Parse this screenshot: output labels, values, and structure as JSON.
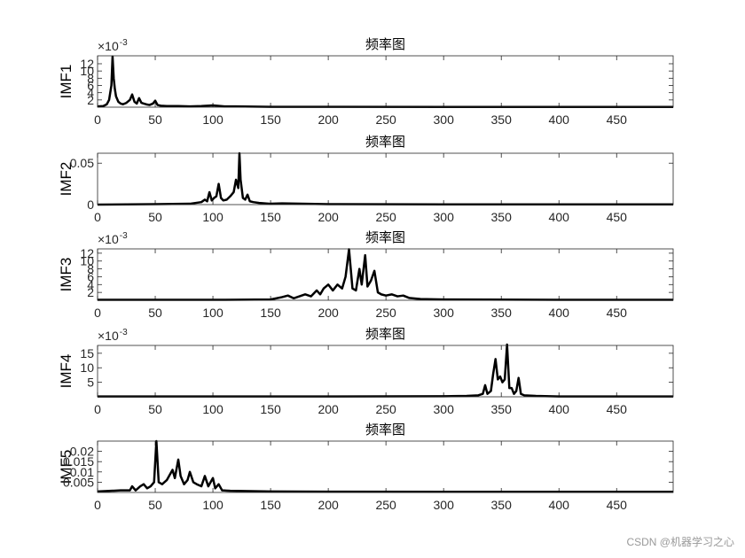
{
  "chart_data": [
    {
      "type": "line",
      "title": "频率图",
      "y_label": "IMF1",
      "y_exponent_base": "×10",
      "y_exponent": "-3",
      "x": [
        0,
        5,
        8,
        10,
        12,
        13,
        14,
        15,
        16,
        18,
        20,
        22,
        25,
        28,
        30,
        32,
        34,
        36,
        38,
        40,
        42,
        45,
        48,
        50,
        52,
        55,
        60,
        70,
        80,
        90,
        100,
        110,
        120,
        150,
        200,
        300,
        400,
        499
      ],
      "values": [
        0.0002,
        0.0003,
        0.0008,
        0.002,
        0.006,
        0.014,
        0.008,
        0.005,
        0.003,
        0.0015,
        0.001,
        0.0008,
        0.0012,
        0.002,
        0.0035,
        0.0015,
        0.001,
        0.0025,
        0.0012,
        0.001,
        0.0008,
        0.0006,
        0.001,
        0.0018,
        0.0006,
        0.0004,
        0.0003,
        0.0003,
        0.0002,
        0.0003,
        0.0005,
        0.0002,
        0.0002,
        0.0001,
        0.0001,
        5e-05,
        5e-05,
        5e-05
      ],
      "color": "#000000",
      "xlim": [
        0,
        499
      ],
      "xticks": [
        0,
        50,
        100,
        150,
        200,
        250,
        300,
        350,
        400,
        450
      ],
      "ylim": [
        0,
        0.0142
      ],
      "yticks": [
        {
          "value": 0.002,
          "label": "2"
        },
        {
          "value": 0.004,
          "label": "4"
        },
        {
          "value": 0.006,
          "label": "6"
        },
        {
          "value": 0.008,
          "label": "8"
        },
        {
          "value": 0.01,
          "label": "10"
        },
        {
          "value": 0.012,
          "label": "12"
        }
      ]
    },
    {
      "type": "line",
      "title": "频率图",
      "y_label": "IMF2",
      "x": [
        0,
        50,
        80,
        90,
        93,
        95,
        97,
        99,
        101,
        103,
        105,
        107,
        109,
        112,
        115,
        118,
        120,
        122,
        123,
        124,
        126,
        128,
        130,
        132,
        135,
        140,
        150,
        160,
        200,
        300,
        400,
        499
      ],
      "values": [
        0,
        0.0005,
        0.001,
        0.003,
        0.006,
        0.004,
        0.015,
        0.005,
        0.008,
        0.01,
        0.025,
        0.008,
        0.005,
        0.006,
        0.01,
        0.015,
        0.03,
        0.02,
        0.062,
        0.03,
        0.008,
        0.006,
        0.012,
        0.004,
        0.003,
        0.002,
        0.001,
        0.0015,
        0.0005,
        0.0003,
        0.0002,
        0.0002
      ],
      "color": "#000000",
      "xlim": [
        0,
        499
      ],
      "xticks": [
        0,
        50,
        100,
        150,
        200,
        250,
        300,
        350,
        400,
        450
      ],
      "ylim": [
        0,
        0.062
      ],
      "yticks": [
        0,
        0.05
      ]
    },
    {
      "type": "line",
      "title": "频率图",
      "y_label": "IMF3",
      "y_exponent_base": "×10",
      "y_exponent": "-3",
      "x": [
        0,
        100,
        150,
        160,
        165,
        170,
        175,
        180,
        185,
        190,
        193,
        196,
        200,
        204,
        208,
        212,
        215,
        218,
        221,
        224,
        227,
        229,
        232,
        234,
        237,
        240,
        243,
        246,
        250,
        255,
        260,
        265,
        270,
        280,
        300,
        400,
        499
      ],
      "values": [
        0.0001,
        0.0001,
        0.0002,
        0.0008,
        0.0012,
        0.0005,
        0.001,
        0.0015,
        0.001,
        0.0025,
        0.0015,
        0.003,
        0.004,
        0.0025,
        0.004,
        0.003,
        0.006,
        0.013,
        0.003,
        0.0025,
        0.008,
        0.004,
        0.0115,
        0.0035,
        0.005,
        0.0075,
        0.002,
        0.0015,
        0.0012,
        0.0015,
        0.001,
        0.0012,
        0.0006,
        0.0003,
        0.0002,
        0.0001,
        0.0001
      ],
      "color": "#000000",
      "xlim": [
        0,
        499
      ],
      "xticks": [
        0,
        50,
        100,
        150,
        200,
        250,
        300,
        350,
        400,
        450
      ],
      "ylim": [
        0,
        0.0131
      ],
      "yticks": [
        {
          "value": 0.002,
          "label": "2"
        },
        {
          "value": 0.004,
          "label": "4"
        },
        {
          "value": 0.006,
          "label": "6"
        },
        {
          "value": 0.008,
          "label": "8"
        },
        {
          "value": 0.01,
          "label": "10"
        },
        {
          "value": 0.012,
          "label": "12"
        }
      ]
    },
    {
      "type": "line",
      "title": "频率图",
      "y_label": "IMF4",
      "y_exponent_base": "×10",
      "y_exponent": "-3",
      "x": [
        0,
        100,
        200,
        300,
        320,
        330,
        334,
        336,
        338,
        341,
        343,
        345,
        347,
        349,
        351,
        353,
        355,
        357,
        359,
        361,
        363,
        365,
        367,
        370,
        380,
        400,
        499
      ],
      "values": [
        0.0001,
        0.0001,
        0.0001,
        0.0002,
        0.0003,
        0.0005,
        0.001,
        0.004,
        0.001,
        0.002,
        0.008,
        0.013,
        0.006,
        0.007,
        0.005,
        0.006,
        0.018,
        0.003,
        0.003,
        0.001,
        0.002,
        0.0065,
        0.001,
        0.0005,
        0.0003,
        0.0001,
        0.0001
      ],
      "color": "#000000",
      "xlim": [
        0,
        499
      ],
      "xticks": [
        0,
        50,
        100,
        150,
        200,
        250,
        300,
        350,
        400,
        450
      ],
      "ylim": [
        0,
        0.0177
      ],
      "yticks": [
        {
          "value": 0.005,
          "label": "5"
        },
        {
          "value": 0.01,
          "label": "10"
        },
        {
          "value": 0.015,
          "label": "15"
        }
      ]
    },
    {
      "type": "line",
      "title": "频率图",
      "y_label": "IMF5",
      "x": [
        0,
        20,
        28,
        30,
        33,
        37,
        40,
        43,
        46,
        49,
        51,
        53,
        56,
        60,
        63,
        65,
        67,
        70,
        72,
        75,
        78,
        80,
        83,
        86,
        90,
        93,
        96,
        100,
        102,
        105,
        108,
        115,
        150,
        200,
        300,
        400,
        499
      ],
      "values": [
        0.0005,
        0.001,
        0.001,
        0.003,
        0.001,
        0.003,
        0.004,
        0.002,
        0.003,
        0.005,
        0.025,
        0.005,
        0.004,
        0.006,
        0.009,
        0.011,
        0.007,
        0.016,
        0.008,
        0.004,
        0.006,
        0.01,
        0.005,
        0.004,
        0.003,
        0.008,
        0.003,
        0.007,
        0.002,
        0.004,
        0.001,
        0.0008,
        0.0005,
        0.0004,
        0.0003,
        0.0003,
        0.0003
      ],
      "color": "#000000",
      "xlim": [
        0,
        499
      ],
      "xticks": [
        0,
        50,
        100,
        150,
        200,
        250,
        300,
        350,
        400,
        450
      ],
      "ylim": [
        0,
        0.025
      ],
      "yticks": [
        0.005,
        0.01,
        0.015,
        0.02
      ]
    }
  ],
  "watermark": "CSDN @机器学习之心"
}
